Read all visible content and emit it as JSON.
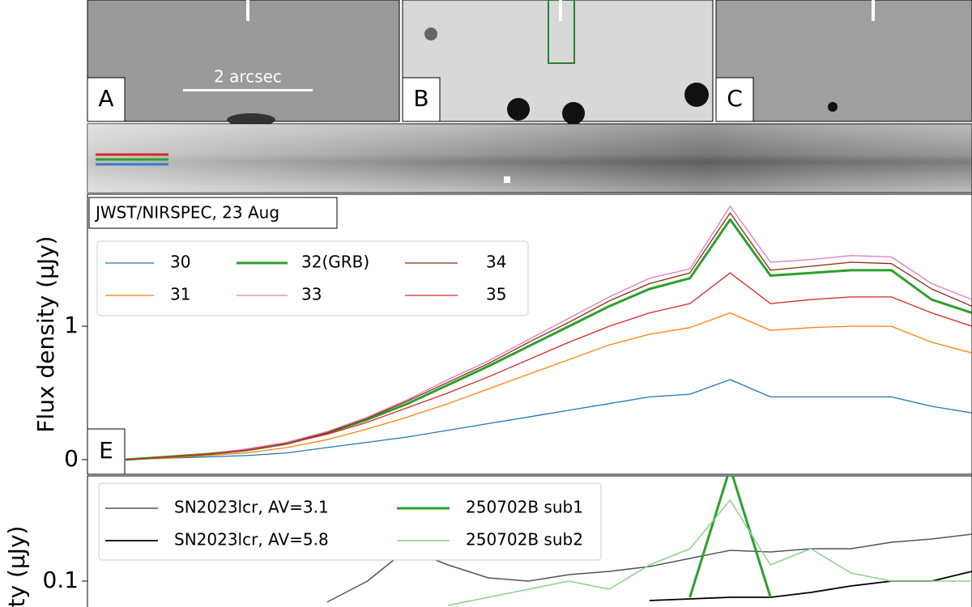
{
  "panels": [
    {
      "label": "A",
      "scale_bar": "2 arcsec"
    },
    {
      "label": "B"
    },
    {
      "label": "C"
    }
  ],
  "chart_data": [
    {
      "type": "line",
      "label": "E",
      "annotation": "JWST/NIRSPEC, 23 Aug",
      "ylabel": "Flux density (μJy)",
      "ylim": [
        -0.11,
        1.99
      ],
      "yticks": [
        0,
        1
      ],
      "series": [
        {
          "name": "30",
          "color": "#1f77b4",
          "width": 1.3,
          "values": [
            0,
            0.01,
            0.02,
            0.03,
            0.05,
            0.09,
            0.13,
            0.17,
            0.22,
            0.27,
            0.32,
            0.37,
            0.42,
            0.47,
            0.49,
            0.6,
            0.47,
            0.47,
            0.47,
            0.47,
            0.4,
            0.35
          ]
        },
        {
          "name": "31",
          "color": "#ff7f0e",
          "width": 1.3,
          "values": [
            0,
            0.01,
            0.03,
            0.05,
            0.09,
            0.15,
            0.23,
            0.32,
            0.42,
            0.53,
            0.64,
            0.75,
            0.86,
            0.94,
            0.99,
            1.1,
            0.97,
            0.99,
            1.0,
            1.0,
            0.88,
            0.8
          ]
        },
        {
          "name": "32(GRB)",
          "color": "#2ca02c",
          "width": 3,
          "values": [
            0,
            0.02,
            0.04,
            0.07,
            0.12,
            0.2,
            0.3,
            0.42,
            0.56,
            0.7,
            0.85,
            1.0,
            1.15,
            1.28,
            1.36,
            1.8,
            1.38,
            1.4,
            1.42,
            1.42,
            1.2,
            1.1
          ]
        },
        {
          "name": "33",
          "color": "#e377c2",
          "width": 1.3,
          "values": [
            0,
            0.02,
            0.04,
            0.08,
            0.13,
            0.21,
            0.32,
            0.45,
            0.6,
            0.74,
            0.9,
            1.06,
            1.22,
            1.36,
            1.43,
            1.9,
            1.48,
            1.5,
            1.53,
            1.52,
            1.32,
            1.2
          ]
        },
        {
          "name": "34",
          "color": "#8b2a0e",
          "width": 1.3,
          "values": [
            0,
            0.02,
            0.04,
            0.07,
            0.12,
            0.2,
            0.31,
            0.44,
            0.58,
            0.72,
            0.88,
            1.03,
            1.19,
            1.32,
            1.4,
            1.85,
            1.42,
            1.45,
            1.48,
            1.47,
            1.28,
            1.15
          ]
        },
        {
          "name": "35",
          "color": "#d62728",
          "width": 1.3,
          "values": [
            0,
            0.02,
            0.04,
            0.07,
            0.12,
            0.19,
            0.28,
            0.39,
            0.5,
            0.62,
            0.75,
            0.88,
            1.0,
            1.1,
            1.17,
            1.4,
            1.17,
            1.2,
            1.22,
            1.22,
            1.1,
            1.0
          ]
        }
      ]
    },
    {
      "type": "line",
      "ylabel": "ty (μJy)",
      "ylim": [
        0.084,
        0.165
      ],
      "yticks": [
        0.1
      ],
      "series": [
        {
          "name": "SN2023lcr, AV=3.1",
          "color": "#555555",
          "width": 1.5,
          "values": [
            null,
            null,
            null,
            null,
            null,
            0.087,
            0.1,
            0.12,
            0.11,
            0.102,
            0.1,
            0.104,
            0.106,
            0.109,
            0.114,
            0.119,
            0.118,
            0.12,
            0.12,
            0.124,
            0.126,
            0.129
          ]
        },
        {
          "name": "SN2023lcr, AV=5.8",
          "color": "#000000",
          "width": 1.8,
          "values": [
            null,
            null,
            null,
            null,
            null,
            null,
            null,
            null,
            null,
            null,
            null,
            null,
            null,
            0.088,
            0.089,
            0.09,
            0.09,
            0.093,
            0.097,
            0.1,
            0.1,
            0.106
          ]
        },
        {
          "name": "250702B sub1",
          "color": "#2ca02c",
          "width": 3,
          "values": [
            null,
            null,
            null,
            null,
            null,
            null,
            null,
            null,
            null,
            null,
            null,
            null,
            null,
            null,
            0.09,
            0.17,
            0.09,
            null,
            null,
            null,
            null,
            null
          ]
        },
        {
          "name": "250702B sub2",
          "color": "#8fd18f",
          "width": 1.5,
          "values": [
            null,
            null,
            null,
            null,
            null,
            null,
            null,
            null,
            0.085,
            0.09,
            0.095,
            0.1,
            0.095,
            0.11,
            0.12,
            0.15,
            0.11,
            0.12,
            0.105,
            0.1,
            0.1,
            0.1
          ]
        }
      ]
    }
  ]
}
